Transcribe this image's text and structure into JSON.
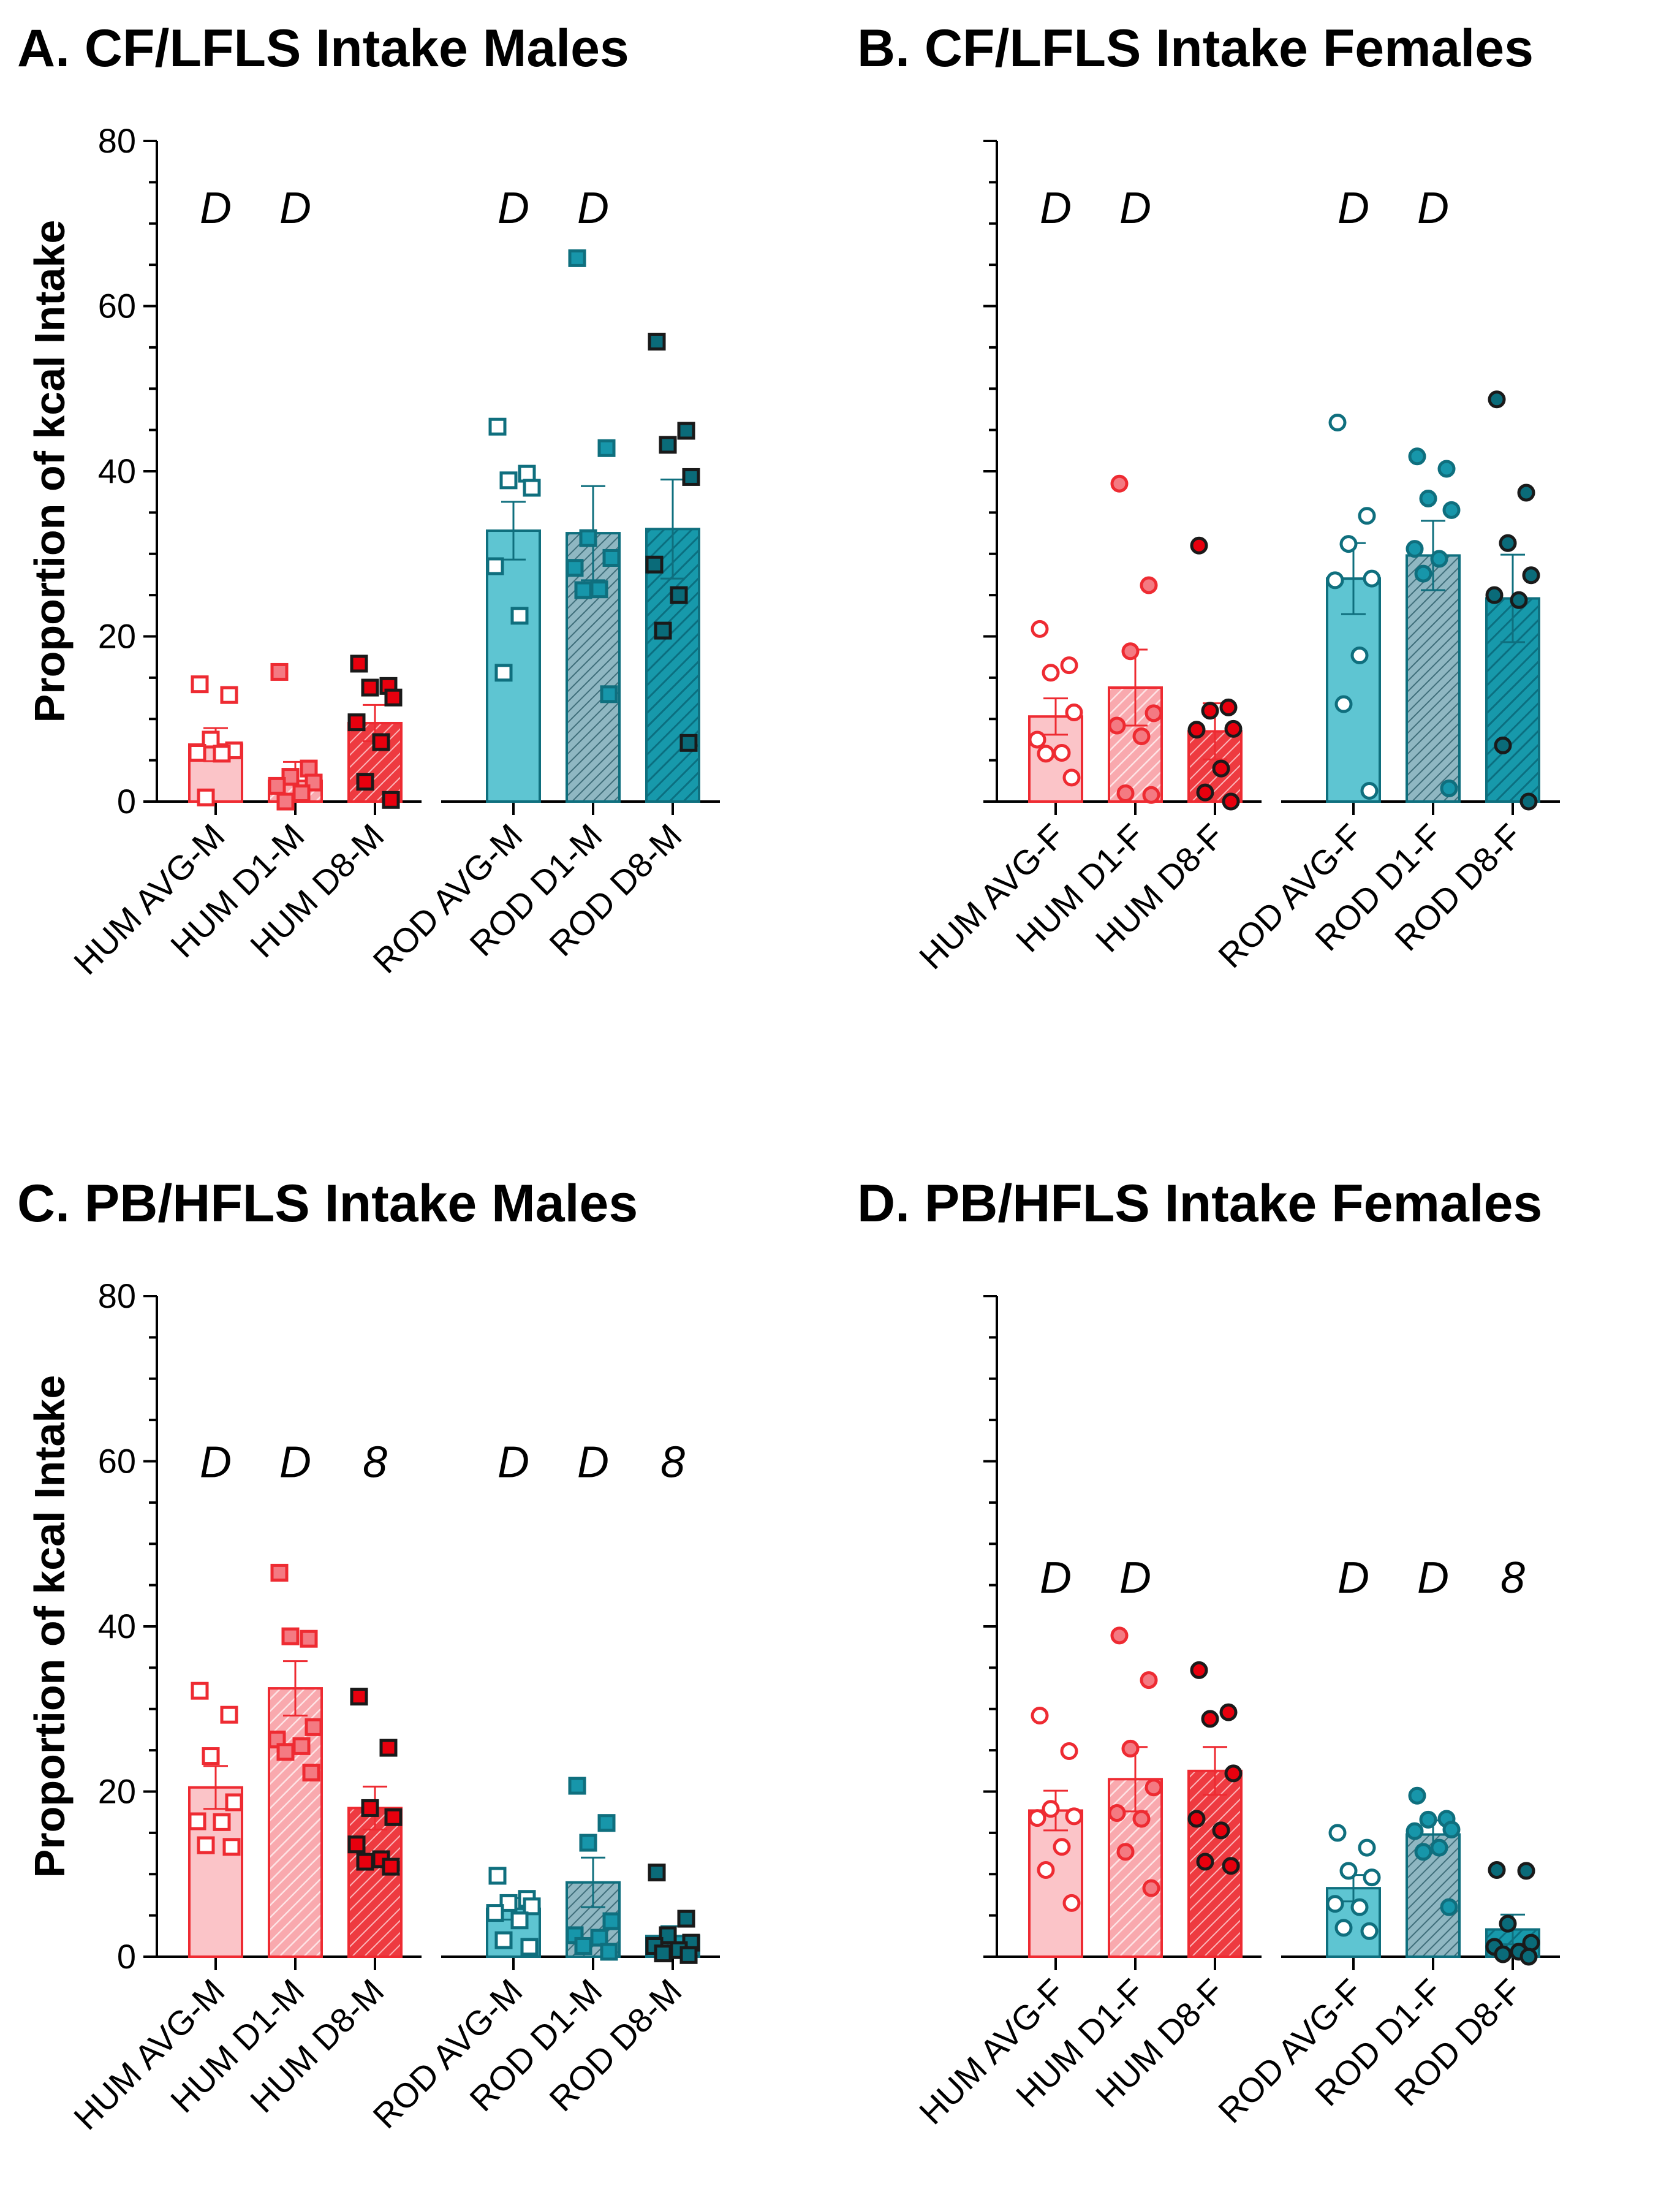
{
  "figure": {
    "ylabel": "Proportion of kcal Intake"
  },
  "chart_data": [
    {
      "id": "A",
      "type": "bar",
      "title": "A. CF/LFLS Intake Males",
      "ylabel": "Proportion of kcal Intake",
      "ylim": [
        0,
        80
      ],
      "yticks": [
        0,
        20,
        40,
        60,
        80
      ],
      "show_ytick_labels": true,
      "marker": "square",
      "categories": [
        "HUM AVG-M",
        "HUM D1-M",
        "HUM D8-M",
        "ROD AVG-M",
        "ROD D1-M",
        "ROD D8-M"
      ],
      "values": [
        6.9,
        2.5,
        9.5,
        32.8,
        32.5,
        33.0
      ],
      "sem": [
        2.0,
        2.3,
        2.2,
        3.5,
        5.7,
        6.0
      ],
      "points": [
        [
          14.2,
          12.9,
          7.5,
          6.2,
          5.9,
          5.8,
          0.5
        ],
        [
          15.7,
          4.0,
          3.0,
          2.3,
          1.9,
          1.0,
          0.0
        ],
        [
          16.7,
          14.0,
          13.8,
          12.6,
          9.6,
          7.2,
          2.4,
          0.2
        ],
        [
          45.4,
          39.7,
          38.9,
          38.0,
          28.5,
          22.5,
          15.6
        ],
        [
          65.8,
          42.8,
          31.9,
          29.5,
          28.3,
          25.7,
          25.6,
          13.0
        ],
        [
          55.7,
          44.9,
          43.2,
          39.3,
          28.7,
          25.0,
          20.7,
          7.1
        ]
      ],
      "annotations": [
        "D",
        "D",
        "",
        "D",
        "D",
        ""
      ],
      "annotation_y": 72
    },
    {
      "id": "B",
      "type": "bar",
      "title": "B. CF/LFLS Intake Females",
      "ylabel": "",
      "ylim": [
        0,
        80
      ],
      "yticks": [
        0,
        20,
        40,
        60,
        80
      ],
      "show_ytick_labels": false,
      "marker": "circle",
      "categories": [
        "HUM AVG-F",
        "HUM D1-F",
        "HUM D8-F",
        "ROD AVG-F",
        "ROD D1-F",
        "ROD D8-F"
      ],
      "values": [
        10.3,
        13.8,
        8.5,
        27.0,
        29.8,
        24.6
      ],
      "sem": [
        2.2,
        4.6,
        3.4,
        4.3,
        4.2,
        5.3
      ],
      "points": [
        [
          20.9,
          16.5,
          15.6,
          10.8,
          7.5,
          5.9,
          5.8,
          2.9
        ],
        [
          38.5,
          26.2,
          18.2,
          10.7,
          9.2,
          7.9,
          1.0,
          0.8
        ],
        [
          31.0,
          11.4,
          11.0,
          8.8,
          8.7,
          4.0,
          1.1,
          0.0
        ],
        [
          45.9,
          34.6,
          31.2,
          27.0,
          26.8,
          17.7,
          11.8,
          1.3
        ],
        [
          41.8,
          40.3,
          36.7,
          35.3,
          30.6,
          29.4,
          27.6,
          1.6
        ],
        [
          48.7,
          37.4,
          31.3,
          27.4,
          25.0,
          24.4,
          6.8,
          0.0
        ]
      ],
      "annotations": [
        "D",
        "D",
        "",
        "D",
        "D",
        ""
      ],
      "annotation_y": 72
    },
    {
      "id": "C",
      "type": "bar",
      "title": "C. PB/HFLS Intake Males",
      "ylabel": "Proportion of kcal Intake",
      "ylim": [
        0,
        80
      ],
      "yticks": [
        0,
        20,
        40,
        60,
        80
      ],
      "show_ytick_labels": true,
      "marker": "square",
      "categories": [
        "HUM AVG-M",
        "HUM D1-M",
        "HUM D8-M",
        "ROD AVG-M",
        "ROD D1-M",
        "ROD D8-M"
      ],
      "values": [
        20.5,
        32.5,
        18.0,
        5.8,
        9.0,
        2.5
      ],
      "sem": [
        2.6,
        3.3,
        2.6,
        1.3,
        3.0,
        1.2
      ],
      "points": [
        [
          32.2,
          29.3,
          24.3,
          18.7,
          16.4,
          16.3,
          13.5,
          13.3
        ],
        [
          46.5,
          38.5,
          38.8,
          27.8,
          26.3,
          25.5,
          24.8,
          22.3
        ],
        [
          31.5,
          25.3,
          18.0,
          16.9,
          13.6,
          11.8,
          11.5,
          10.9
        ],
        [
          9.8,
          7.0,
          6.5,
          6.1,
          5.3,
          4.4,
          2.0,
          1.2
        ],
        [
          20.7,
          16.2,
          13.8,
          4.3,
          2.6,
          2.3,
          1.3,
          0.6
        ],
        [
          10.2,
          4.6,
          2.6,
          1.7,
          1.3,
          0.8,
          0.4,
          0.2
        ]
      ],
      "annotations": [
        "D",
        "D",
        "8",
        "D",
        "D",
        "8"
      ],
      "annotation_y": 60
    },
    {
      "id": "D",
      "type": "bar",
      "title": "D. PB/HFLS Intake Females",
      "ylabel": "",
      "ylim": [
        0,
        80
      ],
      "yticks": [
        0,
        20,
        40,
        60,
        80
      ],
      "show_ytick_labels": false,
      "marker": "circle",
      "categories": [
        "HUM AVG-F",
        "HUM D1-F",
        "HUM D8-F",
        "ROD AVG-F",
        "ROD D1-F",
        "ROD D8-F"
      ],
      "values": [
        17.7,
        21.5,
        22.5,
        8.3,
        14.8,
        3.3
      ],
      "sem": [
        2.4,
        3.9,
        2.9,
        1.6,
        1.7,
        1.8
      ],
      "points": [
        [
          29.2,
          24.9,
          17.9,
          17.0,
          16.8,
          13.3,
          10.5,
          6.5
        ],
        [
          38.9,
          33.5,
          25.2,
          20.5,
          17.4,
          16.7,
          12.7,
          8.3
        ],
        [
          34.7,
          29.6,
          28.8,
          22.2,
          16.7,
          15.3,
          11.5,
          11.0
        ],
        [
          15.0,
          13.2,
          10.4,
          9.6,
          6.4,
          6.0,
          3.5,
          3.1
        ],
        [
          19.5,
          16.7,
          16.6,
          15.4,
          15.2,
          13.2,
          12.7,
          6.0
        ],
        [
          10.5,
          10.4,
          4.0,
          1.7,
          1.2,
          0.6,
          0.3,
          0.0
        ]
      ],
      "annotations": [
        "D",
        "D",
        "",
        "D",
        "D",
        "8"
      ],
      "annotation_y": 46
    }
  ],
  "colors": {
    "hum_avg_fill": "#fbc4c8",
    "hum_d1_fill": "#f9a9ae",
    "hum_d8_fill": "#ee3a40",
    "hum_edge": "#ee2b32",
    "hum_avg_point": "#ffffff",
    "hum_d1_point": "#f47a82",
    "hum_d8_point": "#e8000e",
    "rod_avg_fill": "#5ec5d2",
    "rod_d1_fill": "#8fb7c2",
    "rod_d8_fill": "#1799ab",
    "rod_edge": "#0f6f7e",
    "rod_avg_point": "#ffffff",
    "rod_d1_point": "#1796aa",
    "rod_d8_point": "#0a6b79"
  }
}
